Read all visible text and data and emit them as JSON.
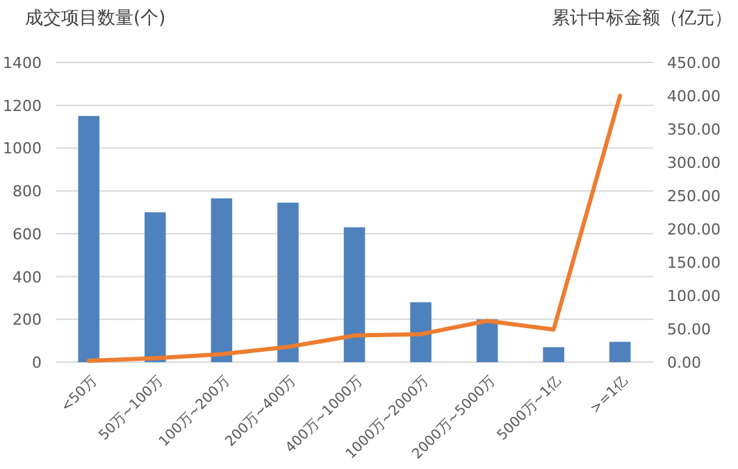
{
  "chart_data": {
    "type": "bar",
    "ylabel": "成交项目数量(个)",
    "y2label": "累计中标金额（亿元）",
    "categories": [
      "<50万",
      "50万~100万",
      "100万~200万",
      "200万~400万",
      "400万~1000万",
      "1000万~2000万",
      "2000万~5000万",
      "5000万~1亿",
      ">=1亿"
    ],
    "series": [
      {
        "color": "#4f81bd",
        "values": [
          1150,
          700,
          765,
          745,
          630,
          280,
          200,
          70,
          95
        ]
      },
      {
        "type": "line",
        "axis": "y2",
        "color": "#ed7d31",
        "values": [
          2,
          6,
          12,
          23,
          40,
          42,
          62,
          49,
          400
        ]
      }
    ],
    "ylim": [
      0,
      1400
    ],
    "yticks": [
      0,
      200,
      400,
      600,
      800,
      1000,
      1200,
      1400
    ],
    "y2lim": [
      0,
      450
    ],
    "y2ticks": [
      {
        "value": 0,
        "label": "0.00"
      },
      {
        "value": 50,
        "label": "50.00"
      },
      {
        "value": 100,
        "label": "100.00"
      },
      {
        "value": 150,
        "label": "150.00"
      },
      {
        "value": 200,
        "label": "200.00"
      },
      {
        "value": 250,
        "label": "250.00"
      },
      {
        "value": 300,
        "label": "300.00"
      },
      {
        "value": 350,
        "label": "350.00"
      },
      {
        "value": 400,
        "label": "400.00"
      },
      {
        "value": 450,
        "label": "450.00"
      }
    ],
    "grid": "y"
  }
}
